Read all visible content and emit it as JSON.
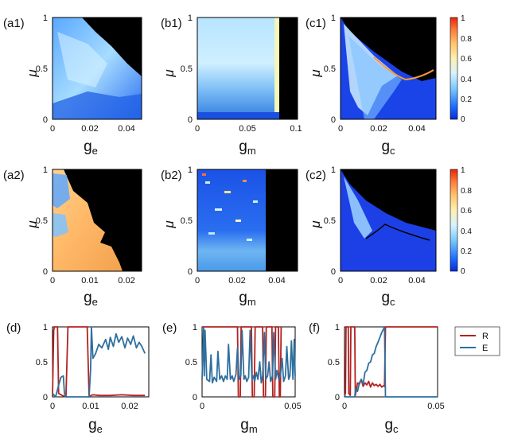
{
  "figure": {
    "panels": [
      {
        "id": "a1",
        "label": "(a1)",
        "xlabel": "g",
        "xsub": "e",
        "ylabel": "μ",
        "xticks": [
          "0",
          "0.02",
          "0.04"
        ],
        "yticks": [
          "0",
          "0.5",
          "1"
        ]
      },
      {
        "id": "b1",
        "label": "(b1)",
        "xlabel": "g",
        "xsub": "m",
        "ylabel": "μ",
        "xticks": [
          "0",
          "0.05",
          "0.1"
        ],
        "yticks": [
          "0",
          "0.5",
          "1"
        ]
      },
      {
        "id": "c1",
        "label": "(c1)",
        "xlabel": "g",
        "xsub": "c",
        "ylabel": "μ",
        "xticks": [
          "0",
          "0.02",
          "0.04"
        ],
        "yticks": [
          "0",
          "0.5",
          "1"
        ]
      },
      {
        "id": "a2",
        "label": "(a2)",
        "xlabel": "g",
        "xsub": "e",
        "ylabel": "μ",
        "xticks": [
          "0",
          "0.01",
          "0.02"
        ],
        "yticks": [
          "0",
          "0.5",
          "1"
        ]
      },
      {
        "id": "b2",
        "label": "(b2)",
        "xlabel": "g",
        "xsub": "m",
        "ylabel": "μ",
        "xticks": [
          "0",
          "0.02",
          "0.04"
        ],
        "yticks": [
          "0",
          "0.5",
          "1"
        ]
      },
      {
        "id": "c2",
        "label": "(c2)",
        "xlabel": "g",
        "xsub": "c",
        "ylabel": "μ",
        "xticks": [
          "0",
          "0.02",
          "0.04"
        ],
        "yticks": [
          "0",
          "0.5",
          "1"
        ]
      },
      {
        "id": "d",
        "label": "(d)",
        "xlabel": "g",
        "xsub": "e",
        "xticks": [
          "0",
          "0.01",
          "0.02"
        ],
        "yticks": [
          "0",
          "0.5",
          "1"
        ]
      },
      {
        "id": "e",
        "label": "(e)",
        "xlabel": "g",
        "xsub": "m",
        "xticks": [
          "0",
          "0.05"
        ],
        "yticks": [
          "0",
          "0.5",
          "1"
        ]
      },
      {
        "id": "f",
        "label": "(f)",
        "xlabel": "g",
        "xsub": "c",
        "xticks": [
          "0",
          "0.05"
        ],
        "yticks": [
          "0",
          "0.5",
          "1"
        ]
      }
    ],
    "colorbar": {
      "ticks": [
        "1",
        "0.8",
        "0.6",
        "0.4",
        "0.2",
        "0"
      ]
    },
    "legend": [
      {
        "name": "R",
        "color": "#b22222"
      },
      {
        "name": "E",
        "color": "#2e6f9e"
      }
    ]
  },
  "chart_data": [
    {
      "type": "heatmap",
      "panel": "a1",
      "xlabel": "g_e",
      "ylabel": "μ",
      "xlim": [
        0,
        0.048
      ],
      "ylim": [
        0,
        1
      ],
      "colormap": "jet",
      "crange": [
        0,
        1
      ],
      "description_values": {
        "masked_color": "black",
        "boundary_g_at_mu": [
          [
            1.0,
            0.018
          ],
          [
            0.5,
            0.048
          ],
          [
            0.0,
            0.048
          ]
        ]
      }
    },
    {
      "type": "heatmap",
      "panel": "b1",
      "xlabel": "g_m",
      "ylabel": "μ",
      "xlim": [
        0,
        0.1
      ],
      "ylim": [
        0,
        1
      ],
      "colormap": "jet",
      "crange": [
        0,
        1
      ],
      "description_values": {
        "masked_color": "black",
        "boundary_g": 0.082
      }
    },
    {
      "type": "heatmap",
      "panel": "c1",
      "xlabel": "g_c",
      "ylabel": "μ",
      "xlim": [
        0,
        0.05
      ],
      "ylim": [
        0,
        1
      ],
      "colormap": "jet",
      "crange": [
        0,
        1
      ],
      "description_values": {
        "masked_color": "black",
        "boundary": [
          [
            0.0,
            1.0
          ],
          [
            0.012,
            0.82
          ],
          [
            0.025,
            0.62
          ],
          [
            0.035,
            0.56
          ],
          [
            0.05,
            0.6
          ]
        ]
      }
    },
    {
      "type": "heatmap",
      "panel": "a2",
      "xlabel": "g_e",
      "ylabel": "μ",
      "xlim": [
        0,
        0.024
      ],
      "ylim": [
        0,
        1
      ],
      "colormap": "jet",
      "crange": [
        0,
        1
      ],
      "description_values": {
        "masked_color": "black",
        "boundary_g_at_mu": [
          [
            1.0,
            0.003
          ],
          [
            0.6,
            0.011
          ],
          [
            0.2,
            0.018
          ],
          [
            0.0,
            0.017
          ]
        ]
      }
    },
    {
      "type": "heatmap",
      "panel": "b2",
      "xlabel": "g_m",
      "ylabel": "μ",
      "xlim": [
        0,
        0.05
      ],
      "ylim": [
        0,
        1
      ],
      "colormap": "jet",
      "crange": [
        0,
        1
      ],
      "description_values": {
        "masked_color": "black",
        "boundary_g": 0.034
      }
    },
    {
      "type": "heatmap",
      "panel": "c2",
      "xlabel": "g_c",
      "ylabel": "μ",
      "xlim": [
        0,
        0.05
      ],
      "ylim": [
        0,
        1
      ],
      "colormap": "jet",
      "crange": [
        0,
        1
      ],
      "description_values": {
        "masked_color": "black",
        "boundary": [
          [
            0.0,
            1.0
          ],
          [
            0.01,
            0.78
          ],
          [
            0.02,
            0.62
          ],
          [
            0.035,
            0.5
          ],
          [
            0.05,
            0.4
          ]
        ]
      }
    },
    {
      "type": "line",
      "panel": "d",
      "xlabel": "g_e",
      "ylabel": "",
      "xlim": [
        0,
        0.025
      ],
      "ylim": [
        0,
        1
      ],
      "series": [
        {
          "name": "R",
          "color": "#b22222",
          "x": [
            0,
            0.0003,
            0.0005,
            0.0013,
            0.0016,
            0.0025,
            0.0031,
            0.0035,
            0.004,
            0.0045,
            0.0063,
            0.009,
            0.0095,
            0.01,
            0.0105,
            0.012,
            0.015,
            0.018,
            0.021,
            0.024
          ],
          "y": [
            0,
            0.95,
            1,
            1,
            0.05,
            0.02,
            0.01,
            0,
            1,
            1,
            1,
            1,
            0.0,
            0.02,
            0.03,
            0.02,
            0.02,
            0.03,
            0.02,
            0.02
          ]
        },
        {
          "name": "E",
          "color": "#2e6f9e",
          "x": [
            0,
            0.0008,
            0.0015,
            0.0022,
            0.0028,
            0.0031,
            0.0035,
            0.0095,
            0.0099,
            0.0101,
            0.0105,
            0.0112,
            0.012,
            0.0128,
            0.0138,
            0.0145,
            0.015,
            0.0158,
            0.0165,
            0.0172,
            0.018,
            0.0188,
            0.0195,
            0.0203,
            0.021,
            0.0218,
            0.0225,
            0.0232,
            0.024
          ],
          "y": [
            0.05,
            0.0,
            0.15,
            0.28,
            0.3,
            0.05,
            0,
            0,
            0.4,
            1.0,
            0.55,
            0.62,
            0.75,
            0.7,
            0.82,
            0.68,
            0.85,
            0.72,
            0.9,
            0.78,
            0.86,
            0.7,
            0.84,
            0.75,
            0.87,
            0.7,
            0.78,
            0.72,
            0.62
          ]
        }
      ]
    },
    {
      "type": "line",
      "panel": "e",
      "xlabel": "g_m",
      "ylabel": "",
      "xlim": [
        0,
        0.05
      ],
      "ylim": [
        0,
        1
      ],
      "series": [
        {
          "name": "R",
          "color": "#b22222",
          "x": [
            0,
            0.001,
            0.019,
            0.0195,
            0.0205,
            0.021,
            0.0265,
            0.027,
            0.028,
            0.0285,
            0.0325,
            0.033,
            0.034,
            0.0345,
            0.0375,
            0.038,
            0.039,
            0.0395,
            0.041,
            0.0415,
            0.042,
            0.0425
          ],
          "y": [
            1,
            1,
            1,
            0,
            0,
            1,
            1,
            0,
            0,
            1,
            1,
            0,
            0,
            1,
            1,
            0,
            0,
            1,
            1,
            0,
            0,
            1
          ]
        },
        {
          "name": "E",
          "color": "#2e6f9e",
          "x": [
            0,
            0.0008,
            0.0012,
            0.0016,
            0.0025,
            0.004,
            0.0048,
            0.0055,
            0.0065,
            0.0078,
            0.0085,
            0.0095,
            0.0105,
            0.0115,
            0.0125,
            0.0135,
            0.0142,
            0.0152,
            0.0162,
            0.017,
            0.0182,
            0.019,
            0.0198,
            0.0208,
            0.0215,
            0.0225,
            0.0232,
            0.024,
            0.025,
            0.0258,
            0.0268,
            0.0275,
            0.0282,
            0.0292,
            0.03,
            0.031,
            0.0318,
            0.0325,
            0.0335,
            0.0342,
            0.0352,
            0.036,
            0.0368,
            0.0378,
            0.0385,
            0.0395,
            0.0402,
            0.0412,
            0.042,
            0.043,
            0.0438,
            0.0448,
            0.0455,
            0.0465,
            0.0472,
            0.048,
            0.0488,
            0.0495,
            0.05
          ],
          "y": [
            0.25,
            1.0,
            0.3,
            0.95,
            0.25,
            0.22,
            0.6,
            0.2,
            0.28,
            0.22,
            0.65,
            0.25,
            0.3,
            0.22,
            0.3,
            0.25,
            0.75,
            0.25,
            0.3,
            0.22,
            0.32,
            0.7,
            0.25,
            0.3,
            0.95,
            0.25,
            0.3,
            0.22,
            0.28,
            0.95,
            0.25,
            0.3,
            0.22,
            0.35,
            0.25,
            0.5,
            0.2,
            0.3,
            0.92,
            0.25,
            0.3,
            0.5,
            0.22,
            0.3,
            0.92,
            0.25,
            0.38,
            0.25,
            0.3,
            0.55,
            0.22,
            0.3,
            0.72,
            0.25,
            0.3,
            0.8,
            0.25,
            0.82,
            0.3
          ]
        }
      ]
    },
    {
      "type": "line",
      "panel": "f",
      "xlabel": "g_c",
      "ylabel": "",
      "xlim": [
        0,
        0.05
      ],
      "ylim": [
        0,
        1
      ],
      "series": [
        {
          "name": "R",
          "color": "#b22222",
          "x": [
            0,
            0.0005,
            0.0008,
            0.002,
            0.0023,
            0.0031,
            0.0034,
            0.0055,
            0.0058,
            0.0065,
            0.007,
            0.008,
            0.009,
            0.01,
            0.011,
            0.012,
            0.013,
            0.014,
            0.015,
            0.016,
            0.017,
            0.018,
            0.019,
            0.02,
            0.021,
            0.0215,
            0.022,
            0.05
          ],
          "y": [
            0.02,
            0.05,
            1,
            1,
            0.05,
            0.02,
            1,
            1,
            0.02,
            0.12,
            0.2,
            0.18,
            0.25,
            0.15,
            0.2,
            0.17,
            0.22,
            0.14,
            0.2,
            0.16,
            0.18,
            0.15,
            0.18,
            0.14,
            0.16,
            0.15,
            1,
            1
          ]
        },
        {
          "name": "E",
          "color": "#2e6f9e",
          "x": [
            0,
            0.0008,
            0.0055,
            0.006,
            0.007,
            0.008,
            0.009,
            0.01,
            0.011,
            0.012,
            0.013,
            0.014,
            0.015,
            0.016,
            0.017,
            0.018,
            0.019,
            0.02,
            0.021,
            0.0215,
            0.022,
            0.05
          ],
          "y": [
            0.02,
            0,
            0,
            0.12,
            0.08,
            0.2,
            0.25,
            0.18,
            0.35,
            0.38,
            0.48,
            0.5,
            0.6,
            0.62,
            0.72,
            0.78,
            0.85,
            0.92,
            0.97,
            1.0,
            0,
            0
          ]
        }
      ]
    }
  ]
}
